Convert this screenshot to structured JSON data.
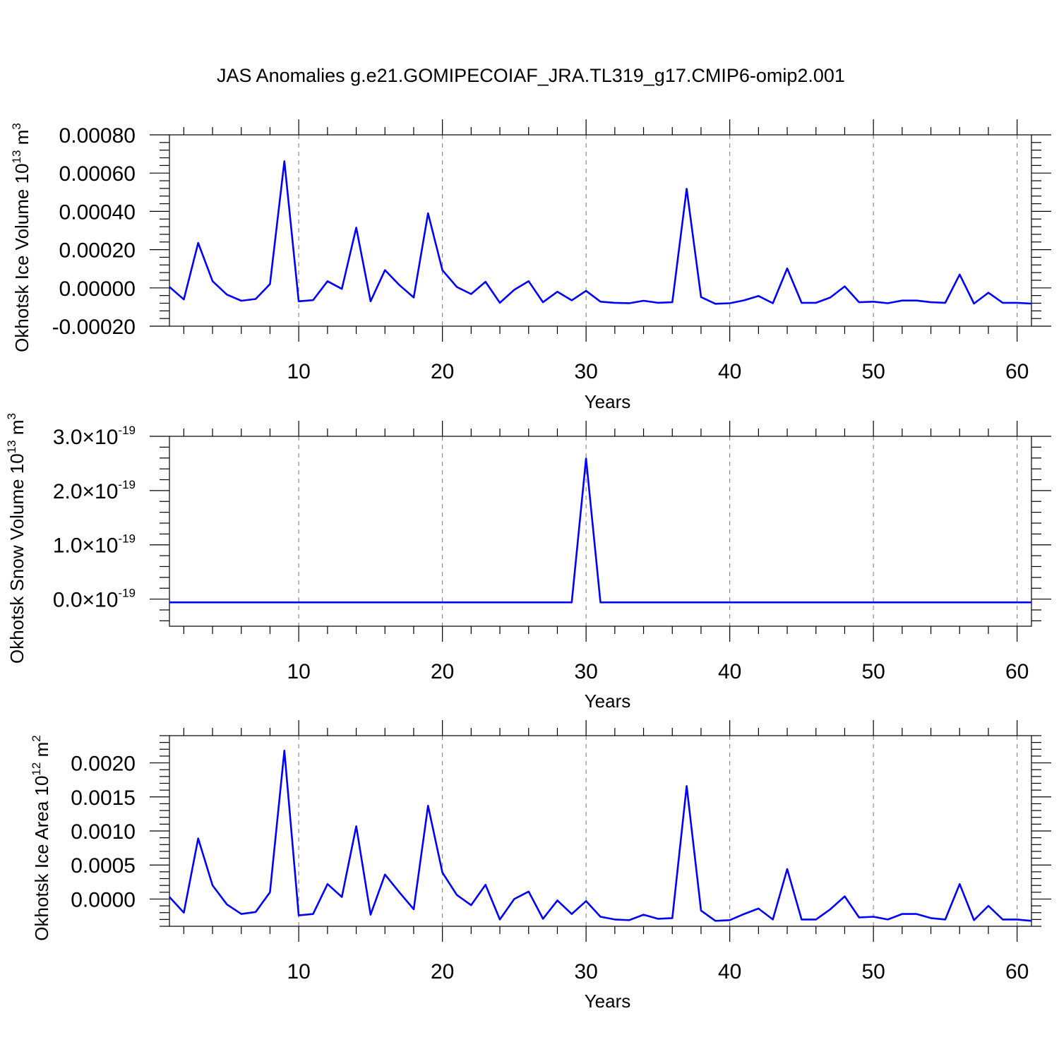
{
  "title": "JAS Anomalies g.e21.GOMIPECOIAF_JRA.TL319_g17.CMIP6-omip2.001",
  "colors": {
    "line": "#0000ff",
    "grid": "#777777",
    "axes": "#000000"
  },
  "chart_data": [
    {
      "type": "line",
      "ylabel": "Okhotsk Ice Volume 10",
      "ylabel_exp": "13",
      "ylabel_unit": " m",
      "ylabel_unit_exp": "3",
      "xlabel": "Years",
      "xlim": [
        1,
        61
      ],
      "ylim": [
        -0.0002,
        0.0008
      ],
      "x_ticks": [
        10,
        20,
        30,
        40,
        50,
        60
      ],
      "x_tick_labels": [
        "10",
        "20",
        "30",
        "40",
        "50",
        "60"
      ],
      "y_ticks": [
        -0.0002,
        0.0,
        0.0002,
        0.0004,
        0.0006,
        0.0008
      ],
      "y_tick_labels": [
        "-0.00020",
        "0.00000",
        "0.00020",
        "0.00040",
        "0.00060",
        "0.00080"
      ],
      "grid": "vertical-dashed",
      "values": [
        5e-06,
        -6e-05,
        0.000235,
        3.5e-05,
        -3.5e-05,
        -6.7e-05,
        -5.8e-05,
        2e-05,
        0.000662,
        -7e-05,
        -6.4e-05,
        3.5e-05,
        -5e-06,
        0.000315,
        -7e-05,
        9.3e-05,
        1.5e-05,
        -5e-05,
        0.00039,
        9.3e-05,
        5e-06,
        -3.2e-05,
        3.2e-05,
        -7.8e-05,
        -1e-05,
        3.5e-05,
        -7.5e-05,
        -2e-05,
        -6.5e-05,
        -1.5e-05,
        -7.2e-05,
        -7.8e-05,
        -8e-05,
        -6.7e-05,
        -7.8e-05,
        -7.5e-05,
        0.000518,
        -4.8e-05,
        -8.3e-05,
        -8e-05,
        -6.5e-05,
        -4.2e-05,
        -8e-05,
        0.000102,
        -7.8e-05,
        -7.8e-05,
        -5e-05,
        8e-06,
        -7.5e-05,
        -7.2e-05,
        -8e-05,
        -6.6e-05,
        -6.6e-05,
        -7.5e-05,
        -7.8e-05,
        7e-05,
        -8.2e-05,
        -2.5e-05,
        -7.8e-05,
        -7.8e-05,
        -8.2e-05
      ]
    },
    {
      "type": "line",
      "ylabel": "Okhotsk Snow Volume 10",
      "ylabel_exp": "13",
      "ylabel_unit": " m",
      "ylabel_unit_exp": "3",
      "xlabel": "Years",
      "xlim": [
        1,
        61
      ],
      "ylim": [
        -5e-20,
        3e-19
      ],
      "x_ticks": [
        10,
        20,
        30,
        40,
        50,
        60
      ],
      "x_tick_labels": [
        "10",
        "20",
        "30",
        "40",
        "50",
        "60"
      ],
      "y_ticks": [
        0.0,
        1e-19,
        2e-19,
        3e-19
      ],
      "y_tick_mantissas": [
        "0.0",
        "1.0",
        "2.0",
        "3.0"
      ],
      "y_tick_times": "×10",
      "y_tick_exp": "-19",
      "grid": "vertical-dashed",
      "values": [
        -6e-21,
        -6e-21,
        -6e-21,
        -6e-21,
        -6e-21,
        -6e-21,
        -6e-21,
        -6e-21,
        -6e-21,
        -6e-21,
        -6e-21,
        -6e-21,
        -6e-21,
        -6e-21,
        -6e-21,
        -6e-21,
        -6e-21,
        -6e-21,
        -6e-21,
        -6e-21,
        -6e-21,
        -6e-21,
        -6e-21,
        -6e-21,
        -6e-21,
        -6e-21,
        -6e-21,
        -6e-21,
        -6e-21,
        2.59e-19,
        -6e-21,
        -6e-21,
        -6e-21,
        -6e-21,
        -6e-21,
        -6e-21,
        -6e-21,
        -6e-21,
        -6e-21,
        -6e-21,
        -6e-21,
        -6e-21,
        -6e-21,
        -6e-21,
        -6e-21,
        -6e-21,
        -6e-21,
        -6e-21,
        -6e-21,
        -6e-21,
        -6e-21,
        -6e-21,
        -6e-21,
        -6e-21,
        -6e-21,
        -6e-21,
        -6e-21,
        -6e-21,
        -6e-21,
        -6e-21,
        -6e-21
      ]
    },
    {
      "type": "line",
      "ylabel": "Okhotsk Ice Area 10",
      "ylabel_exp": "12",
      "ylabel_unit": " m",
      "ylabel_unit_exp": "2",
      "xlabel": "Years",
      "xlim": [
        1,
        61
      ],
      "ylim": [
        -0.0004,
        0.0024
      ],
      "x_ticks": [
        10,
        20,
        30,
        40,
        50,
        60
      ],
      "x_tick_labels": [
        "10",
        "20",
        "30",
        "40",
        "50",
        "60"
      ],
      "y_ticks": [
        0.0,
        0.0005,
        0.001,
        0.0015,
        0.002
      ],
      "y_tick_labels": [
        "0.0000",
        "0.0005",
        "0.0010",
        "0.0015",
        "0.0020"
      ],
      "grid": "vertical-dashed",
      "values": [
        3e-05,
        -0.0002,
        0.00089,
        0.0002,
        -8e-05,
        -0.00022,
        -0.00019,
        0.0001,
        0.00218,
        -0.00024,
        -0.00022,
        0.00022,
        3e-05,
        0.00107,
        -0.00023,
        0.00036,
        0.0001,
        -0.00015,
        0.00137,
        0.00039,
        6e-05,
        -9e-05,
        0.00021,
        -0.0003,
        0.0,
        0.00011,
        -0.00029,
        -2e-05,
        -0.00022,
        -3e-05,
        -0.00026,
        -0.0003,
        -0.00031,
        -0.00023,
        -0.00029,
        -0.00028,
        0.00166,
        -0.00017,
        -0.00032,
        -0.00031,
        -0.00022,
        -0.00014,
        -0.0003,
        0.00044,
        -0.0003,
        -0.0003,
        -0.00015,
        4e-05,
        -0.00027,
        -0.00026,
        -0.0003,
        -0.00022,
        -0.00022,
        -0.00028,
        -0.0003,
        0.00022,
        -0.00031,
        -0.0001,
        -0.0003,
        -0.0003,
        -0.00032
      ]
    }
  ]
}
